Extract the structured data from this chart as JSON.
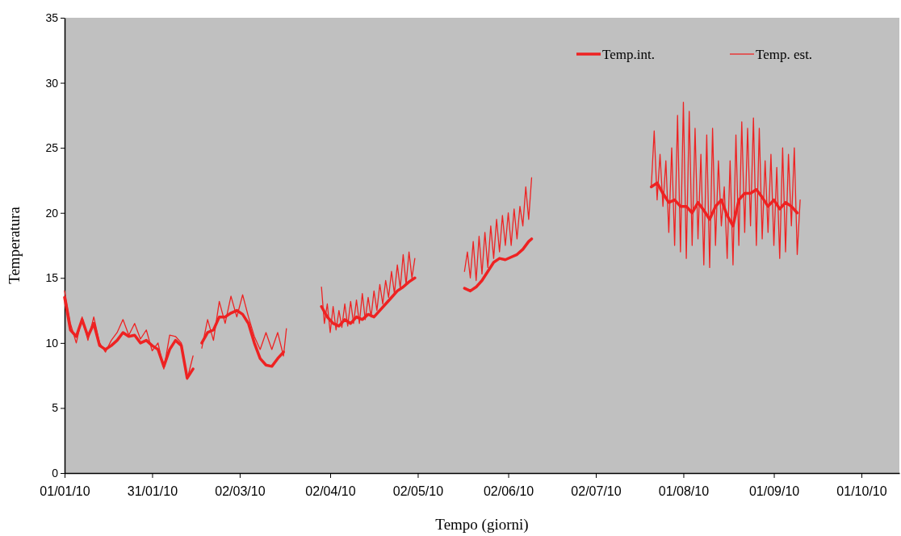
{
  "chart_data": {
    "type": "line",
    "xlabel": "Tempo (giorni)",
    "ylabel": "Temperatura",
    "legend": "top right",
    "grid": false,
    "marker": "none",
    "line_style": "solid",
    "xlim": [
      "2010-01-01",
      "2010-10-14"
    ],
    "xticks": [
      {
        "value": "2010-01-01",
        "label": "01/01/10"
      },
      {
        "value": "2010-01-31",
        "label": "31/01/10"
      },
      {
        "value": "2010-03-02",
        "label": "02/03/10"
      },
      {
        "value": "2010-04-02",
        "label": "02/04/10"
      },
      {
        "value": "2010-05-02",
        "label": "02/05/10"
      },
      {
        "value": "2010-06-02",
        "label": "02/06/10"
      },
      {
        "value": "2010-07-02",
        "label": "02/07/10"
      },
      {
        "value": "2010-08-01",
        "label": "01/08/10"
      },
      {
        "value": "2010-09-01",
        "label": "01/09/10"
      },
      {
        "value": "2010-10-01",
        "label": "01/10/10"
      }
    ],
    "ylim": [
      0,
      35
    ],
    "yticks": [
      0,
      5,
      10,
      15,
      20,
      25,
      30,
      35
    ],
    "series": [
      {
        "name": "Temp.int.",
        "color": "#ee2222",
        "x": [
          "2010-01-01",
          "2010-01-03",
          "2010-01-05",
          "2010-01-07",
          "2010-01-09",
          "2010-01-11",
          "2010-01-13",
          "2010-01-15",
          "2010-01-17",
          "2010-01-19",
          "2010-01-21",
          "2010-01-23",
          "2010-01-25",
          "2010-01-27",
          "2010-01-29",
          "2010-01-31",
          "2010-02-02",
          "2010-02-04",
          "2010-02-06",
          "2010-02-08",
          "2010-02-10",
          "2010-02-12",
          "2010-02-14",
          "2010-02-15",
          "2010-02-17",
          "2010-02-19",
          "2010-02-21",
          "2010-02-23",
          "2010-02-25",
          "2010-02-27",
          "2010-03-01",
          "2010-03-03",
          "2010-03-05",
          "2010-03-07",
          "2010-03-09",
          "2010-03-11",
          "2010-03-13",
          "2010-03-15",
          "2010-03-17",
          "2010-03-20",
          "2010-03-30",
          "2010-04-01",
          "2010-04-03",
          "2010-04-05",
          "2010-04-07",
          "2010-04-09",
          "2010-04-11",
          "2010-04-13",
          "2010-04-15",
          "2010-04-17",
          "2010-04-19",
          "2010-04-21",
          "2010-04-23",
          "2010-04-25",
          "2010-04-27",
          "2010-04-29",
          "2010-05-01",
          "2010-05-10",
          "2010-05-18",
          "2010-05-20",
          "2010-05-22",
          "2010-05-24",
          "2010-05-26",
          "2010-05-28",
          "2010-05-30",
          "2010-06-01",
          "2010-06-03",
          "2010-06-05",
          "2010-06-07",
          "2010-06-09",
          "2010-06-10",
          "2010-07-01",
          "2010-07-21",
          "2010-07-23",
          "2010-07-25",
          "2010-07-27",
          "2010-07-29",
          "2010-07-31",
          "2010-08-02",
          "2010-08-04",
          "2010-08-06",
          "2010-08-08",
          "2010-08-10",
          "2010-08-12",
          "2010-08-14",
          "2010-08-16",
          "2010-08-18",
          "2010-08-20",
          "2010-08-22",
          "2010-08-24",
          "2010-08-26",
          "2010-08-28",
          "2010-08-30",
          "2010-09-01",
          "2010-09-03",
          "2010-09-05",
          "2010-09-07",
          "2010-09-09"
        ],
        "values": [
          13.5,
          11.0,
          10.5,
          11.8,
          10.5,
          11.5,
          9.8,
          9.5,
          9.8,
          10.2,
          10.8,
          10.5,
          10.6,
          10.0,
          10.2,
          9.8,
          9.5,
          8.2,
          9.5,
          10.2,
          9.8,
          7.3,
          8.0,
          null,
          10.0,
          10.8,
          11.0,
          12.0,
          12.0,
          12.3,
          12.5,
          12.2,
          11.5,
          10.0,
          8.8,
          8.3,
          8.2,
          8.8,
          9.3,
          null,
          12.8,
          12.0,
          11.5,
          11.3,
          11.8,
          11.5,
          12.0,
          11.8,
          12.2,
          12.0,
          12.5,
          13.0,
          13.5,
          14.0,
          14.3,
          14.7,
          15.0,
          null,
          14.2,
          14.0,
          14.3,
          14.8,
          15.5,
          16.2,
          16.5,
          16.4,
          16.6,
          16.8,
          17.2,
          17.8,
          18.0,
          null,
          22.0,
          22.3,
          21.5,
          20.8,
          21.0,
          20.5,
          20.5,
          20.0,
          20.8,
          20.2,
          19.5,
          20.5,
          21.0,
          19.8,
          19.0,
          21.0,
          21.5,
          21.5,
          21.8,
          21.2,
          20.5,
          21.0,
          20.3,
          20.8,
          20.5,
          20.0
        ]
      },
      {
        "name": "Temp. est.",
        "color": "#ee2222",
        "x": [
          "2010-01-01",
          "2010-01-03",
          "2010-01-05",
          "2010-01-07",
          "2010-01-09",
          "2010-01-11",
          "2010-01-13",
          "2010-01-15",
          "2010-01-17",
          "2010-01-19",
          "2010-01-21",
          "2010-01-23",
          "2010-01-25",
          "2010-01-27",
          "2010-01-29",
          "2010-01-31",
          "2010-02-02",
          "2010-02-04",
          "2010-02-06",
          "2010-02-08",
          "2010-02-10",
          "2010-02-12",
          "2010-02-14",
          "2010-02-15",
          "2010-02-17",
          "2010-02-19",
          "2010-02-21",
          "2010-02-23",
          "2010-02-25",
          "2010-02-27",
          "2010-03-01",
          "2010-03-03",
          "2010-03-05",
          "2010-03-07",
          "2010-03-09",
          "2010-03-11",
          "2010-03-13",
          "2010-03-15",
          "2010-03-17",
          "2010-03-18",
          "2010-03-20",
          "2010-03-30",
          "2010-03-31",
          "2010-04-01",
          "2010-04-02",
          "2010-04-03",
          "2010-04-04",
          "2010-04-05",
          "2010-04-06",
          "2010-04-07",
          "2010-04-08",
          "2010-04-09",
          "2010-04-10",
          "2010-04-11",
          "2010-04-12",
          "2010-04-13",
          "2010-04-14",
          "2010-04-15",
          "2010-04-16",
          "2010-04-17",
          "2010-04-18",
          "2010-04-19",
          "2010-04-20",
          "2010-04-21",
          "2010-04-22",
          "2010-04-23",
          "2010-04-24",
          "2010-04-25",
          "2010-04-26",
          "2010-04-27",
          "2010-04-28",
          "2010-04-29",
          "2010-04-30",
          "2010-05-01",
          "2010-05-10",
          "2010-05-18",
          "2010-05-19",
          "2010-05-20",
          "2010-05-21",
          "2010-05-22",
          "2010-05-23",
          "2010-05-24",
          "2010-05-25",
          "2010-05-26",
          "2010-05-27",
          "2010-05-28",
          "2010-05-29",
          "2010-05-30",
          "2010-05-31",
          "2010-06-01",
          "2010-06-02",
          "2010-06-03",
          "2010-06-04",
          "2010-06-05",
          "2010-06-06",
          "2010-06-07",
          "2010-06-08",
          "2010-06-09",
          "2010-06-10",
          "2010-07-01",
          "2010-07-21",
          "2010-07-22",
          "2010-07-23",
          "2010-07-24",
          "2010-07-25",
          "2010-07-26",
          "2010-07-27",
          "2010-07-28",
          "2010-07-29",
          "2010-07-30",
          "2010-07-31",
          "2010-08-01",
          "2010-08-02",
          "2010-08-03",
          "2010-08-04",
          "2010-08-05",
          "2010-08-06",
          "2010-08-07",
          "2010-08-08",
          "2010-08-09",
          "2010-08-10",
          "2010-08-11",
          "2010-08-12",
          "2010-08-13",
          "2010-08-14",
          "2010-08-15",
          "2010-08-16",
          "2010-08-17",
          "2010-08-18",
          "2010-08-19",
          "2010-08-20",
          "2010-08-21",
          "2010-08-22",
          "2010-08-23",
          "2010-08-24",
          "2010-08-25",
          "2010-08-26",
          "2010-08-27",
          "2010-08-28",
          "2010-08-29",
          "2010-08-30",
          "2010-08-31",
          "2010-09-01",
          "2010-09-02",
          "2010-09-03",
          "2010-09-04",
          "2010-09-05",
          "2010-09-06",
          "2010-09-07",
          "2010-09-08",
          "2010-09-09",
          "2010-09-10"
        ],
        "values": [
          14.0,
          11.5,
          10.0,
          12.0,
          10.2,
          12.0,
          10.0,
          9.3,
          10.2,
          10.8,
          11.8,
          10.6,
          11.5,
          10.3,
          11.0,
          9.4,
          10.0,
          8.0,
          10.6,
          10.5,
          10.0,
          7.2,
          9.0,
          null,
          9.6,
          11.8,
          10.2,
          13.2,
          11.5,
          13.6,
          12.0,
          13.7,
          12.0,
          10.5,
          9.5,
          10.8,
          9.5,
          10.8,
          9.0,
          11.1,
          null,
          14.3,
          11.5,
          13.0,
          10.8,
          12.8,
          11.0,
          12.5,
          11.2,
          13.0,
          11.3,
          13.2,
          11.5,
          13.3,
          11.5,
          13.8,
          11.8,
          13.5,
          12.0,
          14.0,
          12.5,
          14.5,
          13.0,
          14.8,
          13.5,
          15.5,
          13.8,
          16.0,
          14.2,
          16.8,
          14.5,
          17.0,
          15.0,
          16.5,
          null,
          15.5,
          17.0,
          15.0,
          17.8,
          14.8,
          18.2,
          15.3,
          18.5,
          15.8,
          19.0,
          16.5,
          19.5,
          17.0,
          19.8,
          17.5,
          20.0,
          17.5,
          20.3,
          18.0,
          20.5,
          19.0,
          22.0,
          19.5,
          22.7,
          null,
          22.0,
          26.3,
          21.0,
          24.5,
          20.5,
          24.0,
          18.5,
          25.0,
          17.5,
          27.5,
          17.0,
          28.5,
          16.5,
          27.8,
          17.5,
          26.5,
          18.0,
          24.5,
          16.0,
          26.0,
          15.8,
          26.5,
          17.5,
          24.0,
          19.0,
          22.0,
          16.5,
          24.0,
          16.0,
          26.0,
          17.5,
          27.0,
          18.5,
          26.5,
          19.0,
          27.3,
          17.5,
          26.5,
          18.0,
          24.0,
          18.5,
          24.5,
          17.5,
          23.5,
          16.5,
          25.0,
          17.0,
          24.5,
          19.0,
          25.0,
          16.8,
          21.0
        ]
      }
    ]
  }
}
